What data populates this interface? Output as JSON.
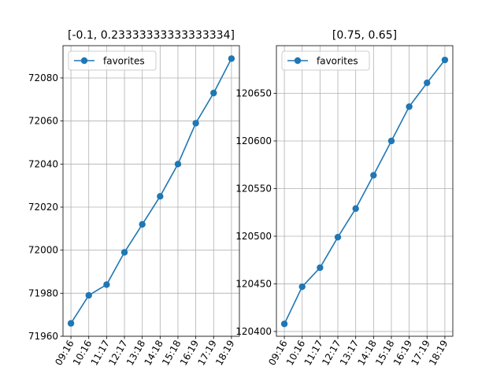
{
  "figure": {
    "background": "#ffffff"
  },
  "chart_data": [
    {
      "type": "line",
      "title": "[-0.1, 0.23333333333333334]",
      "xlabel": "",
      "ylabel": "",
      "categories": [
        "09:16",
        "10:16",
        "11:17",
        "12:17",
        "13:18",
        "14:18",
        "15:18",
        "16:19",
        "17:19",
        "18:19"
      ],
      "series": [
        {
          "name": "favorites",
          "color": "#1f77b4",
          "marker": "circle",
          "values": [
            71966,
            71979,
            71984,
            71999,
            72012,
            72025,
            72040,
            72059,
            72073,
            72089
          ]
        }
      ],
      "ylim": [
        71960,
        72095
      ],
      "yticks": [
        71960,
        71980,
        72000,
        72020,
        72040,
        72060,
        72080
      ],
      "grid": true,
      "legend": "upper left"
    },
    {
      "type": "line",
      "title": "[0.75, 0.65]",
      "xlabel": "",
      "ylabel": "",
      "categories": [
        "09:16",
        "10:16",
        "11:17",
        "12:17",
        "13:17",
        "14:18",
        "15:18",
        "16:19",
        "17:19",
        "18:19"
      ],
      "series": [
        {
          "name": "favorites",
          "color": "#1f77b4",
          "marker": "circle",
          "values": [
            120408,
            120447,
            120467,
            120499,
            120529,
            120564,
            120600,
            120636,
            120661,
            120685
          ]
        }
      ],
      "ylim": [
        120395,
        120700
      ],
      "yticks": [
        120400,
        120450,
        120500,
        120550,
        120600,
        120650
      ],
      "grid": true,
      "legend": "upper left"
    }
  ]
}
